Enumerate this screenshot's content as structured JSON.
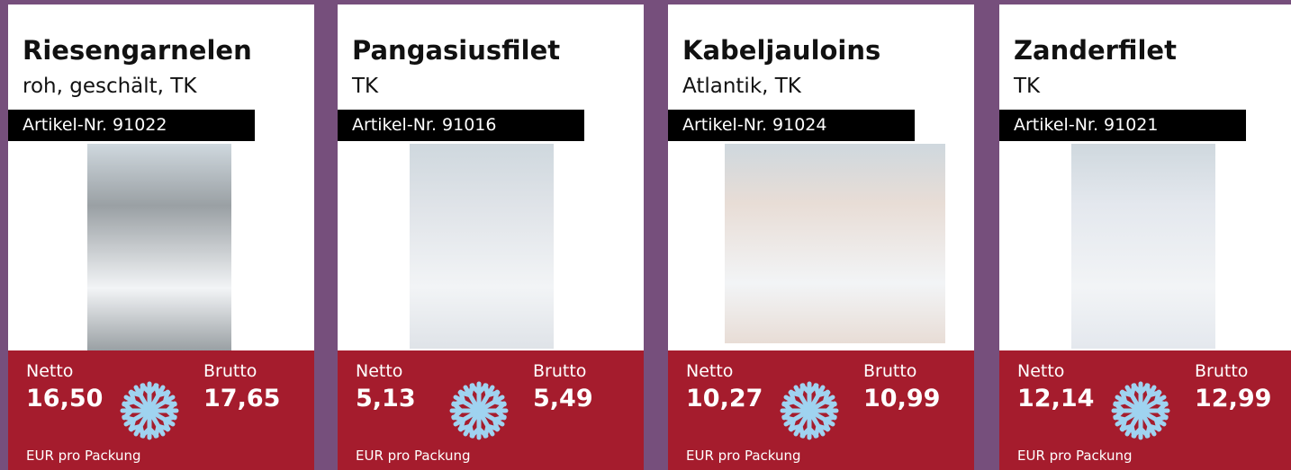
{
  "products": [
    {
      "title": "Riesengarnelen",
      "subtitle": "roh, geschält, TK",
      "article": "Artikel-Nr. 91022",
      "netto_label": "Netto",
      "netto": "16,50",
      "brutto_label": "Brutto",
      "brutto": "17,65",
      "unit": "EUR pro Packung"
    },
    {
      "title": "Pangasiusfilet",
      "subtitle": "TK",
      "article": "Artikel-Nr. 91016",
      "netto_label": "Netto",
      "netto": "5,13",
      "brutto_label": "Brutto",
      "brutto": "5,49",
      "unit": "EUR pro Packung"
    },
    {
      "title": "Kabeljauloins",
      "subtitle": "Atlantik, TK",
      "article": "Artikel-Nr. 91024",
      "netto_label": "Netto",
      "netto": "10,27",
      "brutto_label": "Brutto",
      "brutto": "10,99",
      "unit": "EUR pro Packung"
    },
    {
      "title": "Zanderfilet",
      "subtitle": "TK",
      "article": "Artikel-Nr. 91021",
      "netto_label": "Netto",
      "netto": "12,14",
      "brutto_label": "Brutto",
      "brutto": "12,99",
      "unit": "EUR pro Packung"
    }
  ]
}
